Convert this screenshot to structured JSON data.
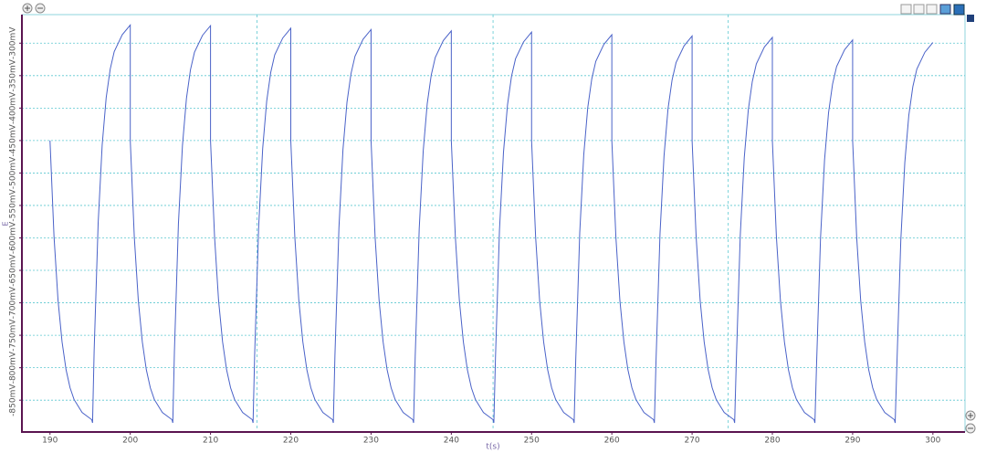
{
  "chart_data": {
    "type": "line",
    "x_label": "t(s)",
    "y_label": "E",
    "xlim": [
      186.5,
      304.0
    ],
    "ylim": [
      -899,
      -256
    ],
    "xticks": [
      190,
      200,
      210,
      220,
      230,
      240,
      250,
      260,
      270,
      280,
      290,
      300
    ],
    "yticks": [
      {
        "value": -300,
        "label": "-300mV"
      },
      {
        "value": -350,
        "label": "-350mV"
      },
      {
        "value": -400,
        "label": "-400mV"
      },
      {
        "value": -450,
        "label": "-450mV"
      },
      {
        "value": -500,
        "label": "-500mV"
      },
      {
        "value": -550,
        "label": "-550mV"
      },
      {
        "value": -600,
        "label": "-600mV"
      },
      {
        "value": -650,
        "label": "-650mV"
      },
      {
        "value": -700,
        "label": "-700mV"
      },
      {
        "value": -750,
        "label": "-750mV"
      },
      {
        "value": -800,
        "label": "-800mV"
      },
      {
        "value": -850,
        "label": "-850mV"
      }
    ],
    "xgrid": [
      215.8,
      245.2,
      274.5
    ],
    "grid": true,
    "color": "#4a62c8",
    "x": [
      190,
      190.5,
      191,
      191.5,
      192,
      192.5,
      193,
      194,
      195.2,
      195.3,
      195.5,
      196,
      196.5,
      197,
      197.5,
      198,
      199,
      200,
      200,
      200.5,
      201,
      201.5,
      202,
      202.5,
      203,
      204,
      205.2,
      205.3,
      205.5,
      206,
      206.5,
      207,
      207.5,
      208,
      209,
      210,
      210,
      210.5,
      211,
      211.5,
      212,
      212.5,
      213,
      214,
      215.2,
      215.3,
      215.5,
      216,
      216.5,
      217,
      217.5,
      218,
      219,
      220,
      220,
      220.5,
      221,
      221.5,
      222,
      222.5,
      223,
      224,
      225.2,
      225.3,
      225.5,
      226,
      226.5,
      227,
      227.5,
      228,
      229,
      230,
      230,
      230.5,
      231,
      231.5,
      232,
      232.5,
      233,
      234,
      235.2,
      235.3,
      235.5,
      236,
      236.5,
      237,
      237.5,
      238,
      239,
      240,
      240,
      240.5,
      241,
      241.5,
      242,
      242.5,
      243,
      244,
      245.2,
      245.3,
      245.5,
      246,
      246.5,
      247,
      247.5,
      248,
      249,
      250,
      250,
      250.5,
      251,
      251.5,
      252,
      252.5,
      253,
      254,
      255.2,
      255.3,
      255.5,
      256,
      256.5,
      257,
      257.5,
      258,
      259,
      260,
      260,
      260.5,
      261,
      261.5,
      262,
      262.5,
      263,
      264,
      265.2,
      265.3,
      265.5,
      266,
      266.5,
      267,
      267.5,
      268,
      269,
      270,
      270,
      270.5,
      271,
      271.5,
      272,
      272.5,
      273,
      274,
      275.2,
      275.3,
      275.5,
      276,
      276.5,
      277,
      277.5,
      278,
      279,
      280,
      280,
      280.5,
      281,
      281.5,
      282,
      282.5,
      283,
      284,
      285.2,
      285.3,
      285.5,
      286,
      286.5,
      287,
      287.5,
      288,
      289,
      290,
      290,
      290.5,
      291,
      291.5,
      292,
      292.5,
      293,
      294,
      295.2,
      295.3,
      295.5,
      296,
      296.5,
      297,
      297.5,
      298,
      299,
      300
    ],
    "values": [
      -450,
      -598,
      -696,
      -760,
      -803,
      -831,
      -849,
      -869,
      -880,
      -885,
      -774,
      -577,
      -457,
      -384,
      -340,
      -313,
      -287,
      -272,
      -450,
      -598,
      -696,
      -760,
      -803,
      -831,
      -849,
      -869,
      -880,
      -885,
      -775,
      -578,
      -458,
      -385,
      -341,
      -314,
      -288,
      -273,
      -450,
      -598,
      -696,
      -760,
      -803,
      -831,
      -849,
      -869,
      -880,
      -885,
      -779,
      -582,
      -462,
      -389,
      -345,
      -318,
      -292,
      -277,
      -450,
      -598,
      -696,
      -760,
      -803,
      -831,
      -849,
      -869,
      -880,
      -885,
      -781,
      -584,
      -464,
      -391,
      -347,
      -320,
      -294,
      -279,
      -450,
      -598,
      -696,
      -760,
      -803,
      -831,
      -849,
      -869,
      -880,
      -885,
      -783,
      -586,
      -466,
      -393,
      -349,
      -322,
      -296,
      -281,
      -450,
      -598,
      -696,
      -760,
      -803,
      -831,
      -849,
      -869,
      -880,
      -885,
      -785,
      -588,
      -468,
      -395,
      -351,
      -324,
      -298,
      -283,
      -450,
      -598,
      -696,
      -760,
      -803,
      -831,
      -849,
      -869,
      -880,
      -885,
      -789,
      -592,
      -472,
      -399,
      -355,
      -328,
      -302,
      -287,
      -450,
      -598,
      -696,
      -760,
      -803,
      -831,
      -849,
      -869,
      -880,
      -885,
      -791,
      -594,
      -474,
      -401,
      -357,
      -330,
      -304,
      -289,
      -450,
      -598,
      -696,
      -760,
      -803,
      -831,
      -849,
      -869,
      -880,
      -885,
      -793,
      -596,
      -476,
      -403,
      -359,
      -332,
      -306,
      -291,
      -450,
      -598,
      -696,
      -760,
      -803,
      -831,
      -849,
      -869,
      -880,
      -885,
      -797,
      -600,
      -480,
      -407,
      -363,
      -336,
      -310,
      -295,
      -450,
      -598,
      -696,
      -760,
      -803,
      -831,
      -849,
      -869,
      -880,
      -885,
      -801,
      -604,
      -484,
      -411,
      -367,
      -340,
      -314,
      -299
    ]
  }
}
